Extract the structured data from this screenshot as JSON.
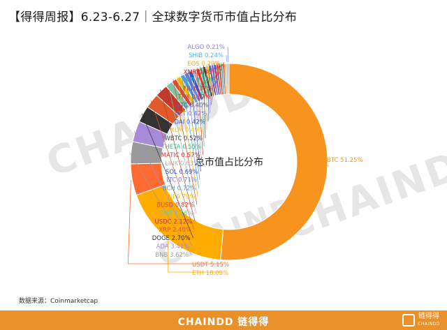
{
  "title": "【得得周报】6.23-6.27｜全球数字货币市值占比分布",
  "source": "数据来源：Coinmarketcap",
  "watermark": "CHAINDD",
  "footer": {
    "brand": "CHAINDD 链得得",
    "logo_cn": "链得得",
    "logo_en": "CHAINDD"
  },
  "colors": {
    "footer_bg": "#e8912a",
    "btc": "#f7941d",
    "eth": "#ffa500"
  },
  "chart_data": {
    "type": "pie",
    "style": "donut",
    "center_label": "总市值占比分布",
    "slices": [
      {
        "name": "BTC",
        "label": "BTC 51.25%",
        "value": 51.25,
        "color": "#f7941d"
      },
      {
        "name": "ETH",
        "label": "ETH 18.09%",
        "value": 18.09,
        "color": "#ffab00"
      },
      {
        "name": "USDT",
        "label": "USDT 5.15%",
        "value": 5.15,
        "color": "#ff6a33"
      },
      {
        "name": "BNB",
        "label": "BNB 3.62%",
        "value": 3.62,
        "color": "#9a9a9a"
      },
      {
        "name": "ADA",
        "label": "ADA 3.41%",
        "value": 3.41,
        "color": "#a68bd8"
      },
      {
        "name": "DOGE",
        "label": "DOGE 2.70%",
        "value": 2.7,
        "color": "#333333"
      },
      {
        "name": "XRP",
        "label": "XRP 2.40%",
        "value": 2.4,
        "color": "#e05a2b"
      },
      {
        "name": "USDC",
        "label": "USDC 2.12%",
        "value": 2.12,
        "color": "#c0392b"
      },
      {
        "name": "DOT",
        "label": "DOT 1.16%",
        "value": 1.16,
        "color": "#7fc4a2"
      },
      {
        "name": "BUSD",
        "label": "BUSD 0.82%",
        "value": 0.82,
        "color": "#e0462f"
      },
      {
        "name": "UNI",
        "label": "UNI 0.79%",
        "value": 0.79,
        "color": "#f5b800"
      },
      {
        "name": "BCH",
        "label": "BCH 0.72%",
        "value": 0.72,
        "color": "#4aa3df"
      },
      {
        "name": "LTC",
        "label": "LTC 0.71%",
        "value": 0.71,
        "color": "#6c7ae0"
      },
      {
        "name": "SOL",
        "label": "SOL 0.69%",
        "value": 0.69,
        "color": "#3456c8"
      },
      {
        "name": "LINK",
        "label": "LINK 0.63%",
        "value": 0.63,
        "color": "#b0b0b0"
      },
      {
        "name": "MATIC",
        "label": "MATIC 0.57%",
        "value": 0.57,
        "color": "#d9332c"
      },
      {
        "name": "THETA",
        "label": "THETA 0.55%",
        "value": 0.55,
        "color": "#3db88a"
      },
      {
        "name": "WBTC",
        "label": "WBTC 0.52%",
        "value": 0.52,
        "color": "#444444"
      },
      {
        "name": "XLM",
        "label": "XLM 0.49%",
        "value": 0.49,
        "color": "#f1c21b"
      },
      {
        "name": "DAI",
        "label": "DAI 0.42%",
        "value": 0.42,
        "color": "#3a5fc8"
      },
      {
        "name": "VET",
        "label": "VET 0.42%",
        "value": 0.42,
        "color": "#8e6ed3"
      },
      {
        "name": "ETC",
        "label": "ETC 0.40%",
        "value": 0.4,
        "color": "#5b4fc9"
      },
      {
        "name": "TRX",
        "label": "TRX 0.37%",
        "value": 0.37,
        "color": "#e23c2c"
      },
      {
        "name": "FIL",
        "label": "FIL 0.37%",
        "value": 0.37,
        "color": "#c0392b"
      },
      {
        "name": "ICP",
        "label": "ICP 0.34%",
        "value": 0.34,
        "color": "#2bb3a0"
      },
      {
        "name": "XMR",
        "label": "XMR 0.30%",
        "value": 0.3,
        "color": "#d62f2f"
      },
      {
        "name": "EOS",
        "label": "EOS 0.29%",
        "value": 0.29,
        "color": "#f2b01e"
      },
      {
        "name": "SHIB",
        "label": "SHIB 0.24%",
        "value": 0.24,
        "color": "#4bb0e6"
      },
      {
        "name": "ALGO",
        "label": "ALGO 0.21%",
        "value": 0.21,
        "color": "#8a7fd6"
      }
    ]
  }
}
